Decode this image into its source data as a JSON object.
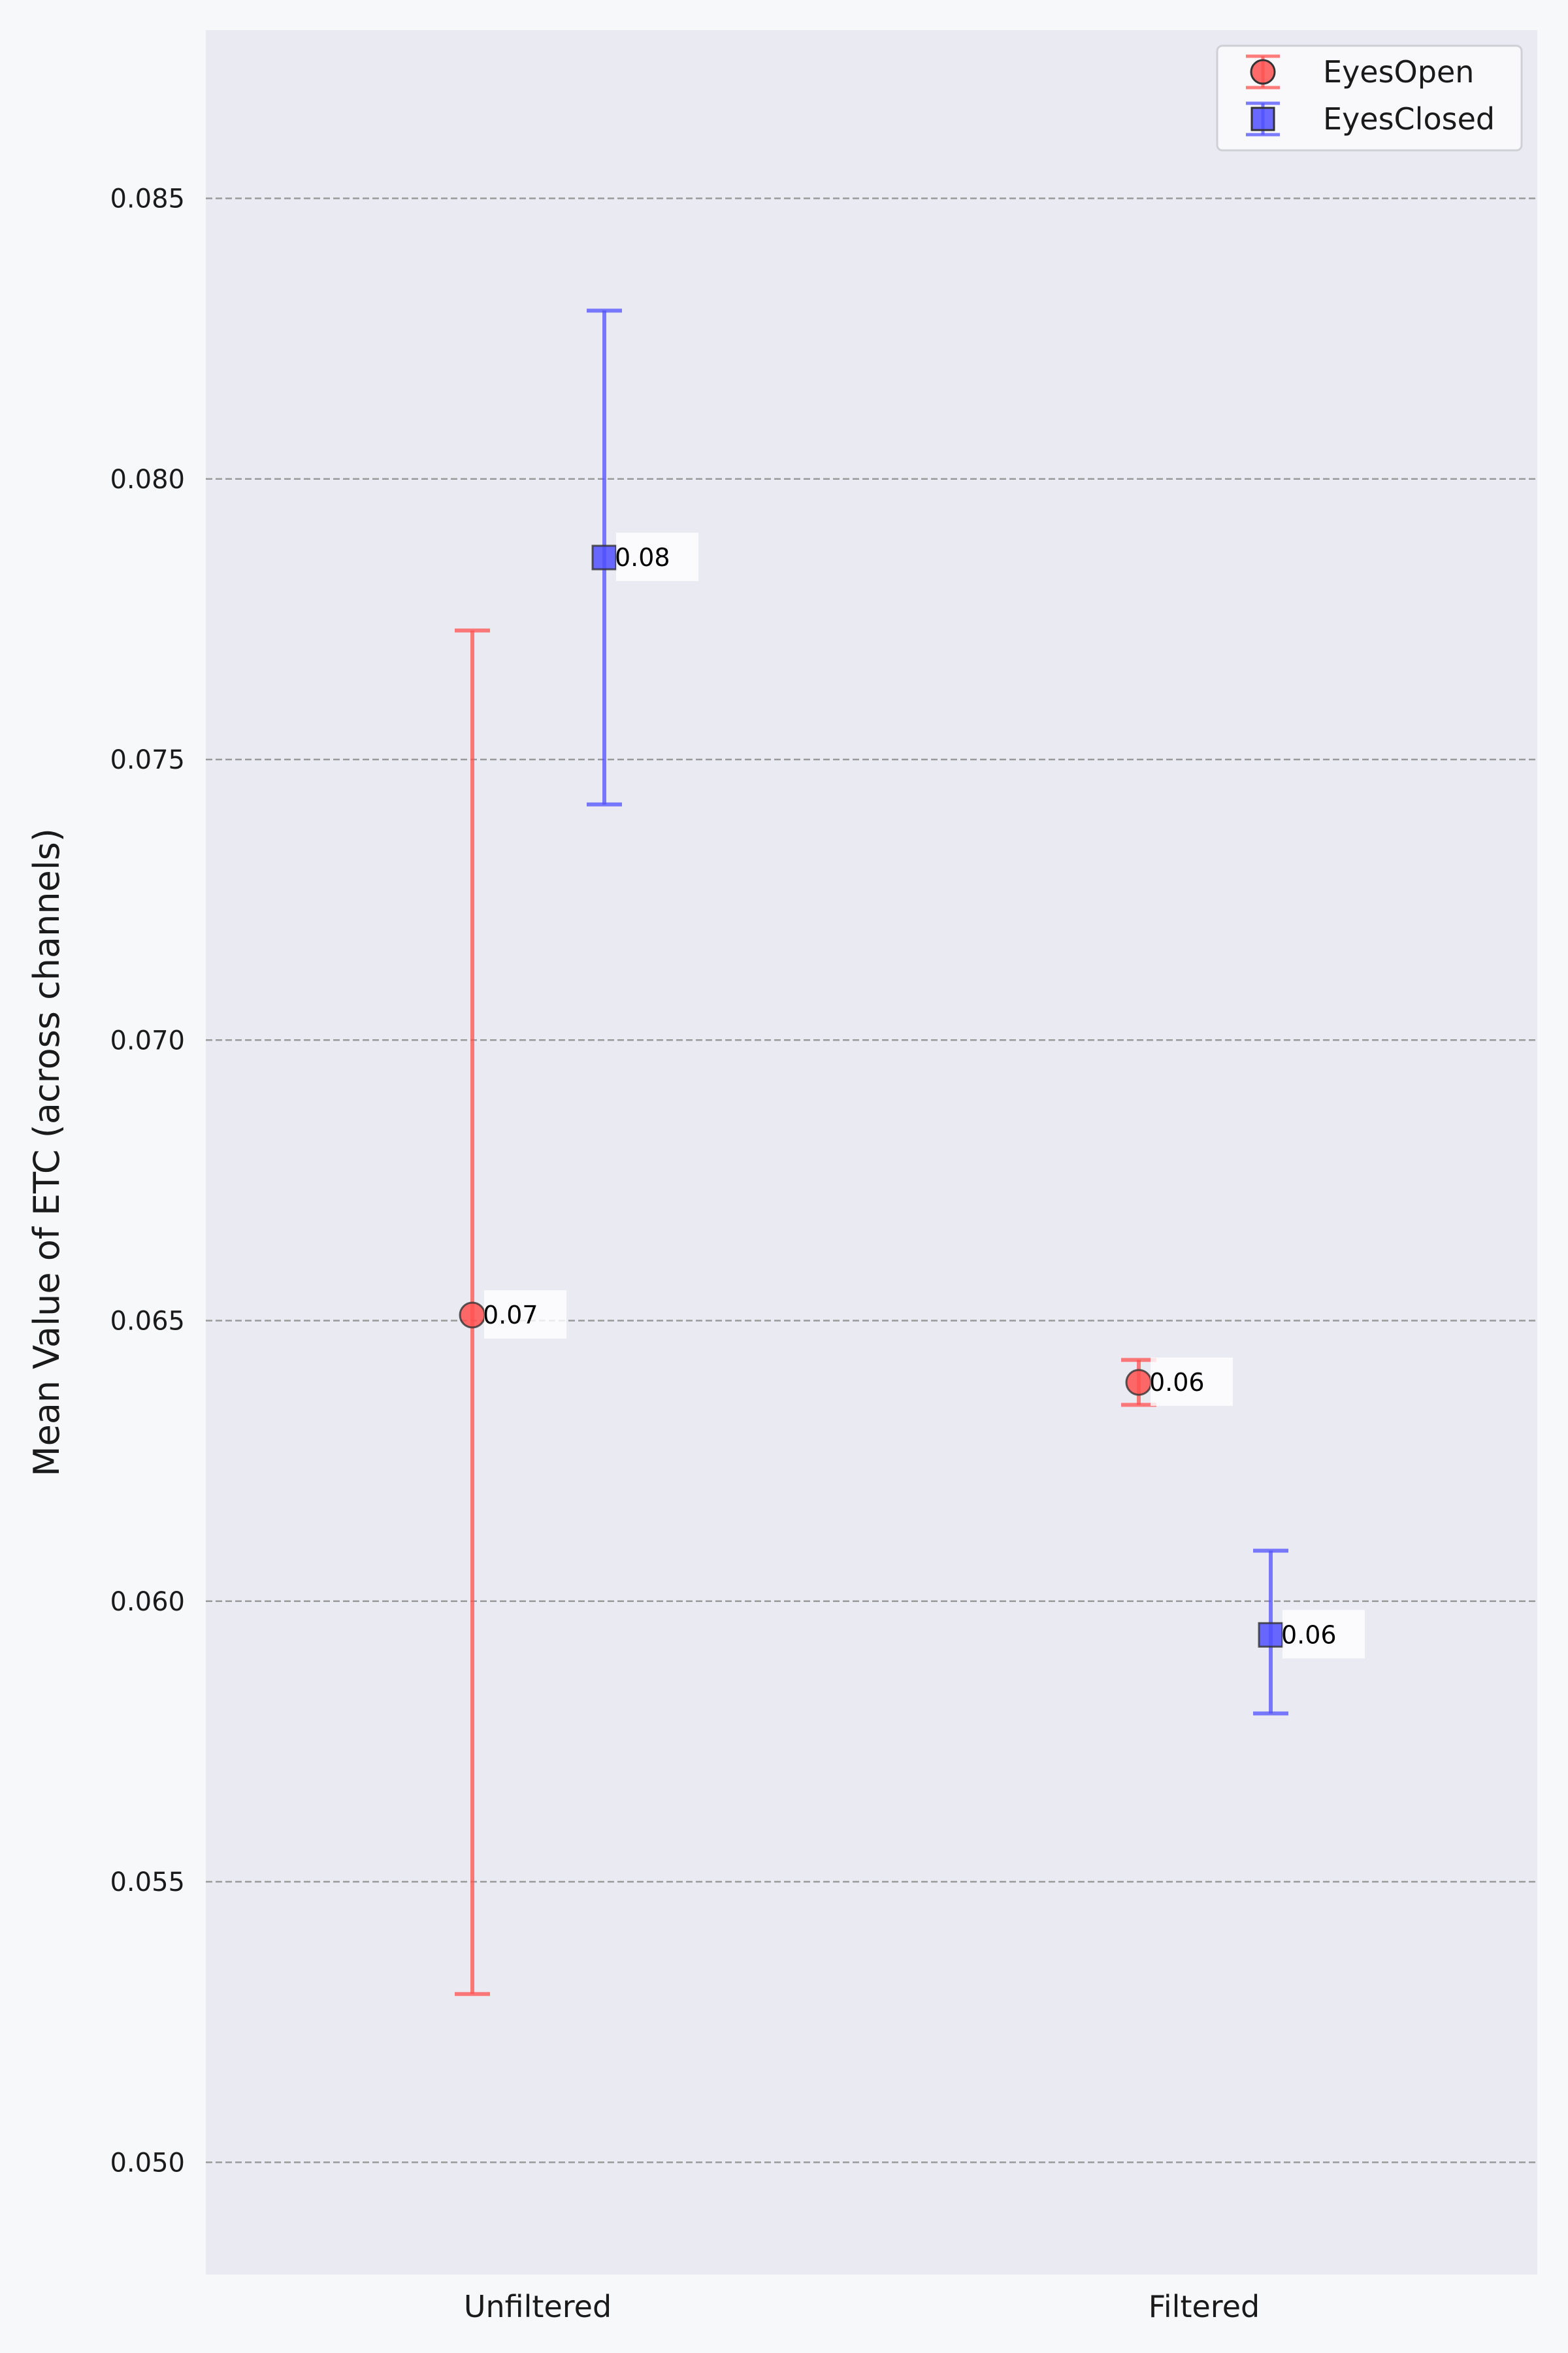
{
  "chart_data": {
    "type": "scatter",
    "title": "",
    "xlabel": "",
    "ylabel": "Mean Value of ETC (across channels)",
    "categories": [
      "Unfiltered",
      "Filtered"
    ],
    "ylim": [
      0.048,
      0.088
    ],
    "yticks": [
      "0.050",
      "0.055",
      "0.060",
      "0.065",
      "0.070",
      "0.075",
      "0.080",
      "0.085"
    ],
    "grid": "horizontal-dashed",
    "legend_position": "top-right",
    "series": [
      {
        "name": "EyesOpen",
        "marker": "circle",
        "color": "#ff5050",
        "values": [
          0.0651,
          0.0639
        ],
        "err_low": [
          0.053,
          0.0635
        ],
        "err_high": [
          0.0773,
          0.0643
        ],
        "labels": [
          "0.07",
          "0.06"
        ]
      },
      {
        "name": "EyesClosed",
        "marker": "square",
        "color": "#5050ff",
        "values": [
          0.0786,
          0.0594
        ],
        "err_low": [
          0.0742,
          0.058
        ],
        "err_high": [
          0.083,
          0.0609
        ],
        "labels": [
          "0.08",
          "0.06"
        ]
      }
    ]
  }
}
